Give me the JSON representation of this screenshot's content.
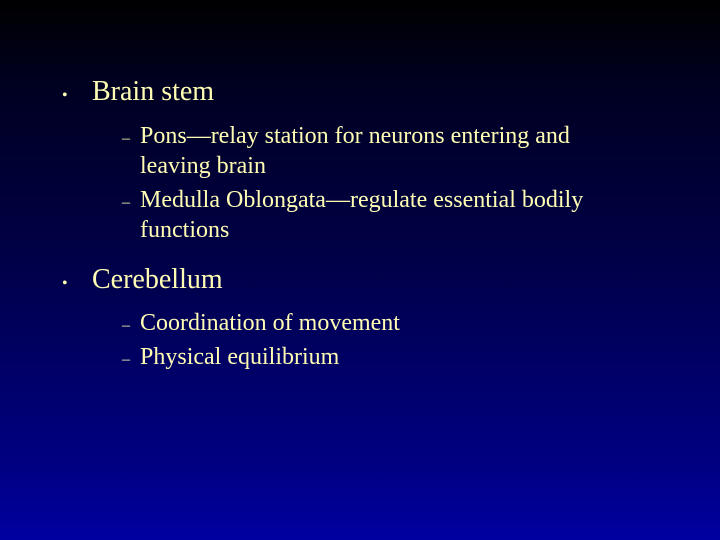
{
  "slide": {
    "background_gradient": [
      "#000000",
      "#000020",
      "#00004a",
      "#000080",
      "#0000a0"
    ],
    "text_color": "#fffdb3",
    "font_family": "Georgia, Times New Roman, serif",
    "l1_fontsize": 28,
    "l2_fontsize": 24,
    "bullets": [
      {
        "marker": "•",
        "label": "Brain stem",
        "sub": [
          {
            "marker": "–",
            "label": "Pons—relay station for neurons entering and leaving brain"
          },
          {
            "marker": "–",
            "label": "Medulla Oblongata—regulate essential bodily functions"
          }
        ]
      },
      {
        "marker": "•",
        "label": "Cerebellum",
        "sub": [
          {
            "marker": "–",
            "label": "Coordination of movement"
          },
          {
            "marker": "–",
            "label": "Physical equilibrium"
          }
        ]
      }
    ]
  }
}
